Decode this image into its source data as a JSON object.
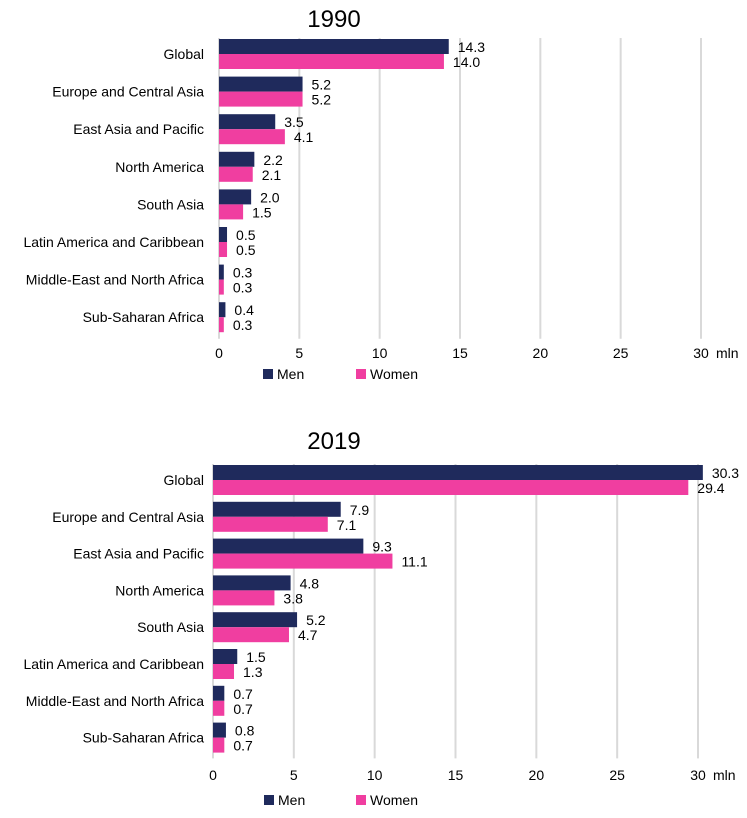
{
  "chart_data": [
    {
      "type": "bar",
      "orientation": "horizontal",
      "title": "1990",
      "categories": [
        "Global",
        "Europe and Central Asia",
        "East Asia and Pacific",
        "North America",
        "South Asia",
        "Latin America and Caribbean",
        "Middle-East and North Africa",
        "Sub-Saharan Africa"
      ],
      "series": [
        {
          "name": "Men",
          "color": "#1f2a5c",
          "values": [
            14.3,
            5.2,
            3.5,
            2.2,
            2.0,
            0.5,
            0.3,
            0.4
          ],
          "labels": [
            "14.3",
            "5.2",
            "3.5",
            "2.2",
            "2.0",
            "0.5",
            "0.3",
            "0.4"
          ]
        },
        {
          "name": "Women",
          "color": "#f03ea0",
          "values": [
            14.0,
            5.2,
            4.1,
            2.1,
            1.5,
            0.5,
            0.3,
            0.3
          ],
          "labels": [
            "14.0",
            "5.2",
            "4.1",
            "2.1",
            "1.5",
            "0.5",
            "0.3",
            "0.3"
          ]
        }
      ],
      "xlim": [
        0,
        30
      ],
      "ticks": [
        "0",
        "5",
        "10",
        "15",
        "20",
        "25",
        "30"
      ],
      "tick_values": [
        0,
        5,
        10,
        15,
        20,
        25,
        30
      ],
      "unit": "mln",
      "legend_position": "bottom",
      "grid": true
    },
    {
      "type": "bar",
      "orientation": "horizontal",
      "title": "2019",
      "categories": [
        "Global",
        "Europe and Central Asia",
        "East Asia and Pacific",
        "North America",
        "South Asia",
        "Latin America and Caribbean",
        "Middle-East and North Africa",
        "Sub-Saharan Africa"
      ],
      "series": [
        {
          "name": "Men",
          "color": "#1f2a5c",
          "values": [
            30.3,
            7.9,
            9.3,
            4.8,
            5.2,
            1.5,
            0.7,
            0.8
          ],
          "labels": [
            "30.3",
            "7.9",
            "9.3",
            "4.8",
            "5.2",
            "1.5",
            "0.7",
            "0.8"
          ]
        },
        {
          "name": "Women",
          "color": "#f03ea0",
          "values": [
            29.4,
            7.1,
            11.1,
            3.8,
            4.7,
            1.3,
            0.7,
            0.7
          ],
          "labels": [
            "29.4",
            "7.1",
            "11.1",
            "3.8",
            "4.7",
            "1.3",
            "0.7",
            "0.7"
          ]
        }
      ],
      "xlim": [
        0,
        30
      ],
      "ticks": [
        "0",
        "5",
        "10",
        "15",
        "20",
        "25",
        "30"
      ],
      "tick_values": [
        0,
        5,
        10,
        15,
        20,
        25,
        30
      ],
      "unit": "mln",
      "legend_position": "bottom",
      "grid": true
    }
  ]
}
